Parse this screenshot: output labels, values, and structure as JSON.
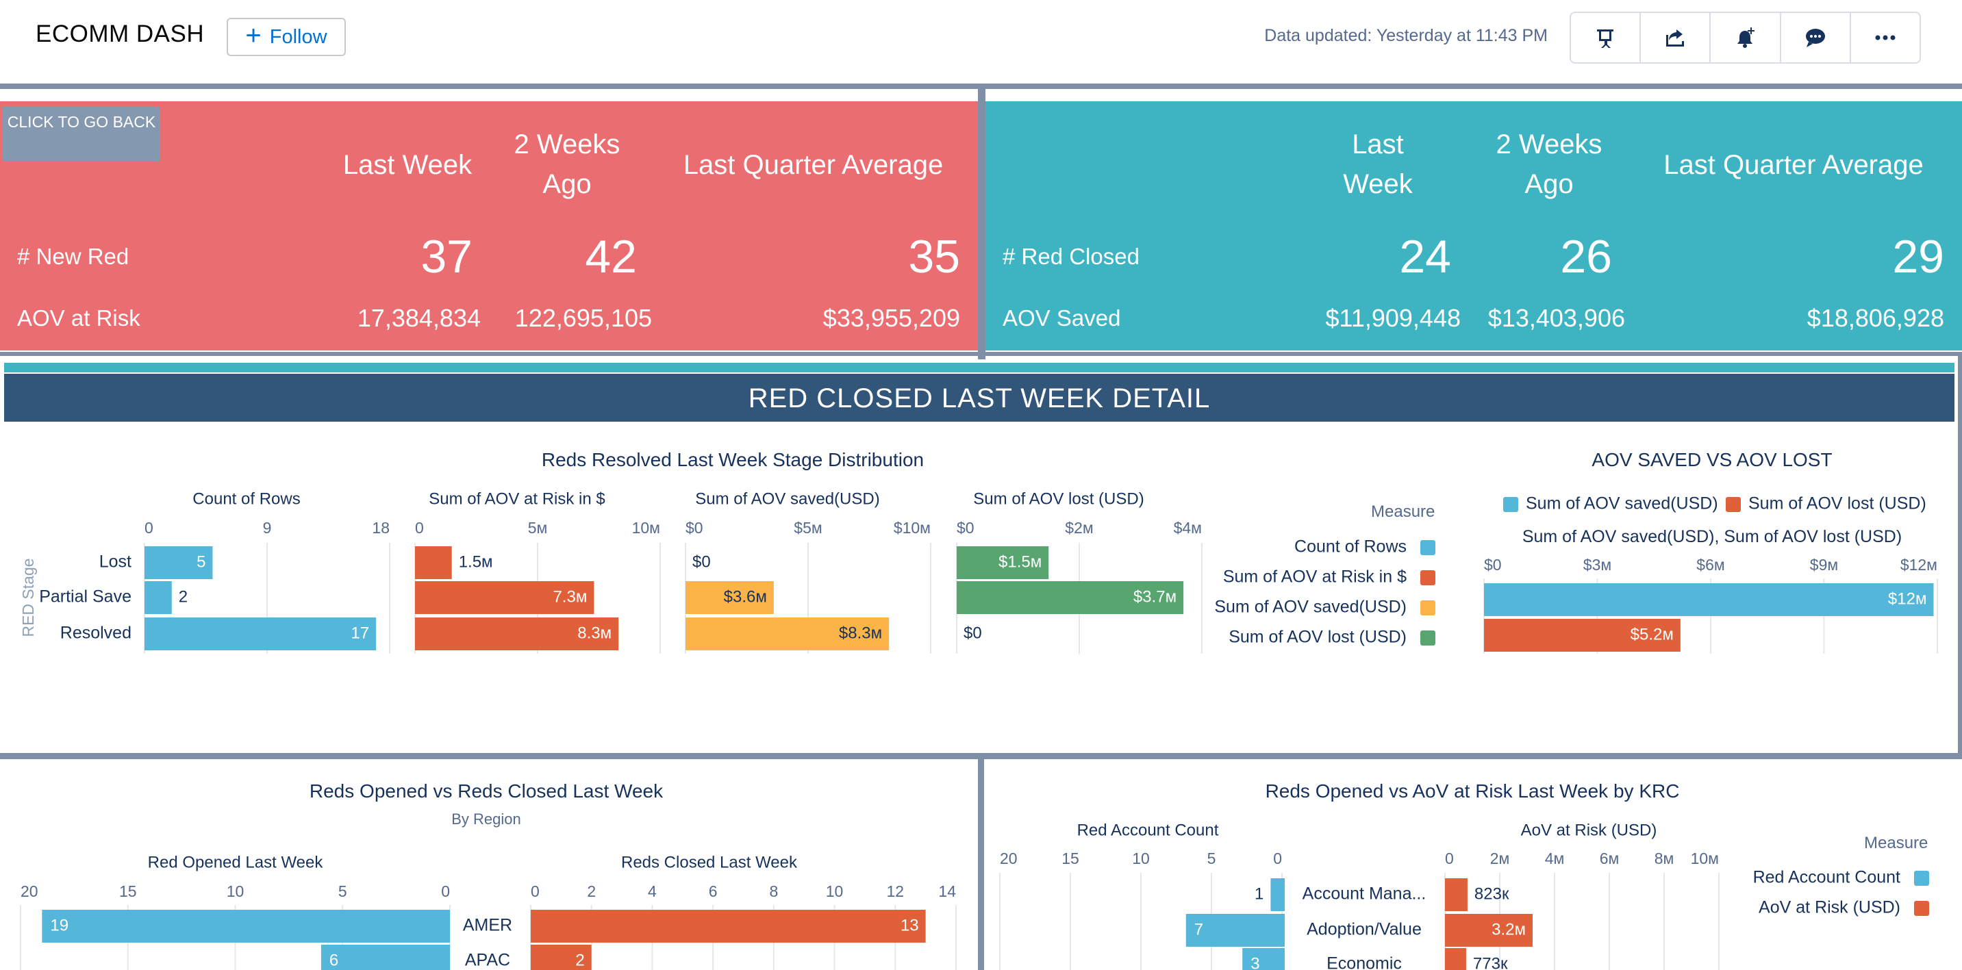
{
  "header": {
    "title": "ECOMM DASH",
    "follow_label": "Follow",
    "updated": "Data updated: Yesterday at 11:43 PM",
    "toolbar": [
      {
        "name": "present-icon"
      },
      {
        "name": "share-icon"
      },
      {
        "name": "subscribe-bell-icon"
      },
      {
        "name": "comment-icon"
      },
      {
        "name": "more-icon"
      }
    ]
  },
  "kpi_red": {
    "back_label": "CLICK TO GO BACK",
    "col1": "Last Week",
    "col2": "2 Weeks Ago",
    "col3": "Last Quarter Average",
    "row1_label": "# New Red",
    "row1": [
      "37",
      "42",
      "35"
    ],
    "row2_label": "AOV at Risk",
    "row2": [
      "17,384,834",
      "122,695,105",
      "$33,955,209"
    ]
  },
  "kpi_teal": {
    "col1": "Last Week",
    "col2": "2 Weeks Ago",
    "col3": "Last Quarter Average",
    "row1_label": "# Red Closed",
    "row1": [
      "24",
      "26",
      "29"
    ],
    "row2_label": "AOV Saved",
    "row2": [
      "$11,909,448",
      "$13,403,906",
      "$18,806,928"
    ]
  },
  "detail_banner": "RED CLOSED LAST WEEK DETAIL",
  "colors": {
    "blue": "#54b6d9",
    "orange": "#e0603a",
    "yellow": "#fcb449",
    "green": "#58a570"
  },
  "chart_data": [
    {
      "type": "bar",
      "title": "Reds Resolved Last Week Stage Distribution",
      "ylabel": "RED Stage",
      "categories": [
        "Lost",
        "Partial Save",
        "Resolved"
      ],
      "legend_title": "Measure",
      "legend": [
        "Count of Rows",
        "Sum of AOV at Risk in $",
        "Sum of AOV saved(USD)",
        "Sum of AOV lost (USD)"
      ],
      "series": [
        {
          "name": "Count of Rows",
          "values": [
            5,
            2,
            17
          ],
          "labels": [
            "5",
            "2",
            "17"
          ],
          "ticks": [
            "0",
            "9",
            "18"
          ],
          "max": 18
        },
        {
          "name": "Sum of AOV at Risk in $",
          "values": [
            1.5,
            7.3,
            8.3
          ],
          "labels": [
            "1.5м",
            "7.3м",
            "8.3м"
          ],
          "ticks": [
            "0",
            "5м",
            "10м"
          ],
          "max": 10
        },
        {
          "name": "Sum of AOV saved(USD)",
          "values": [
            0,
            3.6,
            8.3
          ],
          "labels": [
            "$0",
            "$3.6м",
            "$8.3м"
          ],
          "ticks": [
            "$0",
            "$5м",
            "$10м"
          ],
          "max": 10
        },
        {
          "name": "Sum of AOV lost (USD)",
          "values": [
            1.5,
            3.7,
            0
          ],
          "labels": [
            "$1.5м",
            "$3.7м",
            "$0"
          ],
          "ticks": [
            "$0",
            "$2м",
            "$4м"
          ],
          "max": 4
        }
      ]
    },
    {
      "type": "bar",
      "title": "AOV SAVED VS AOV LOST",
      "subtitle": "Sum of AOV saved(USD), Sum of AOV lost (USD)",
      "legend": [
        "Sum of AOV saved(USD)",
        "Sum of AOV lost (USD)"
      ],
      "ticks": [
        "$0",
        "$3м",
        "$6м",
        "$9м",
        "$12м"
      ],
      "max": 12,
      "series": [
        {
          "name": "Sum of AOV saved(USD)",
          "values": [
            11.9
          ],
          "labels": [
            "$12м"
          ]
        },
        {
          "name": "Sum of AOV lost (USD)",
          "values": [
            5.2
          ],
          "labels": [
            "$5.2м"
          ]
        }
      ]
    },
    {
      "type": "bar",
      "title": "Reds Opened vs Reds Closed Last Week",
      "subtitle": "By Region",
      "categories": [
        "AMER",
        "APAC"
      ],
      "series": [
        {
          "name": "Red Opened Last Week",
          "values": [
            19,
            6
          ],
          "labels": [
            "19",
            "6"
          ],
          "ticks": [
            "20",
            "15",
            "10",
            "5",
            "0"
          ],
          "max": 20
        },
        {
          "name": "Reds Closed Last Week",
          "values": [
            13,
            2
          ],
          "labels": [
            "13",
            "2"
          ],
          "ticks": [
            "0",
            "2",
            "4",
            "6",
            "8",
            "10",
            "12",
            "14"
          ],
          "max": 14
        }
      ]
    },
    {
      "type": "bar",
      "title": "Reds Opened vs AoV at Risk Last Week by KRC",
      "categories": [
        "Account Mana...",
        "Adoption/Value",
        "Economic"
      ],
      "legend_title": "Measure",
      "legend": [
        "Red Account Count",
        "AoV at Risk (USD)"
      ],
      "series": [
        {
          "name": "Red Account Count",
          "values": [
            1,
            7,
            3
          ],
          "labels": [
            "1",
            "7",
            "3"
          ],
          "ticks": [
            "20",
            "15",
            "10",
            "5",
            "0"
          ],
          "max": 20
        },
        {
          "name": "AoV at Risk (USD)",
          "values": [
            0.823,
            3.2,
            0.773
          ],
          "labels": [
            "823к",
            "3.2м",
            "773к"
          ],
          "ticks": [
            "0",
            "2м",
            "4м",
            "6м",
            "8м",
            "10м"
          ],
          "max": 10
        }
      ]
    }
  ]
}
